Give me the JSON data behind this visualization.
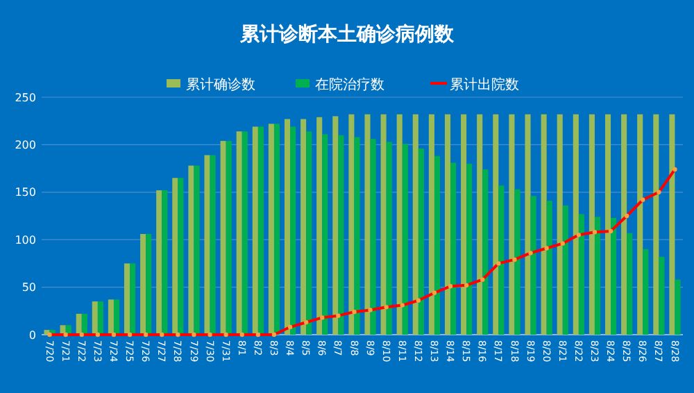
{
  "chart_data": {
    "type": "bar",
    "title": "累计诊断本土确诊病例数",
    "categories": [
      "7/20",
      "7/21",
      "7/22",
      "7/23",
      "7/24",
      "7/25",
      "7/26",
      "7/27",
      "7/28",
      "7/29",
      "7/30",
      "7/31",
      "8/1",
      "8/2",
      "8/3",
      "8/4",
      "8/5",
      "8/6",
      "8/7",
      "8/8",
      "8/9",
      "8/10",
      "8/11",
      "8/12",
      "8/13",
      "8/14",
      "8/15",
      "8/16",
      "8/17",
      "8/18",
      "8/19",
      "8/20",
      "8/21",
      "8/22",
      "8/23",
      "8/24",
      "8/25",
      "8/26",
      "8/27",
      "8/28"
    ],
    "series": [
      {
        "name": "累计确诊数",
        "color": "#9bbb59",
        "values": [
          5,
          10,
          22,
          35,
          37,
          75,
          106,
          152,
          165,
          178,
          189,
          204,
          214,
          219,
          222,
          227,
          227,
          229,
          230,
          232,
          232,
          232,
          232,
          232,
          232,
          232,
          232,
          232,
          232,
          232,
          232,
          232,
          232,
          232,
          232,
          232,
          232,
          232,
          232,
          232
        ]
      },
      {
        "name": "在院治疗数",
        "color": "#00b050",
        "values": [
          5,
          10,
          22,
          35,
          37,
          75,
          106,
          152,
          165,
          178,
          189,
          204,
          214,
          219,
          222,
          219,
          214,
          211,
          210,
          208,
          206,
          203,
          201,
          196,
          188,
          181,
          180,
          174,
          157,
          153,
          146,
          141,
          136,
          127,
          124,
          123,
          107,
          90,
          82,
          58
        ]
      },
      {
        "name": "累计出院数",
        "type": "line",
        "color": "#ff0000",
        "values": [
          0,
          0,
          0,
          0,
          0,
          0,
          0,
          0,
          0,
          0,
          0,
          0,
          0,
          0,
          0,
          8,
          13,
          18,
          20,
          24,
          26,
          29,
          31,
          36,
          44,
          51,
          52,
          58,
          75,
          79,
          86,
          91,
          96,
          105,
          108,
          109,
          125,
          142,
          150,
          174
        ]
      }
    ],
    "ylim": [
      0,
      250
    ],
    "yticks": [
      0,
      50,
      100,
      150,
      200,
      250
    ],
    "grid": "y",
    "legend": "top",
    "marker": "circle",
    "line_style": "solid"
  }
}
